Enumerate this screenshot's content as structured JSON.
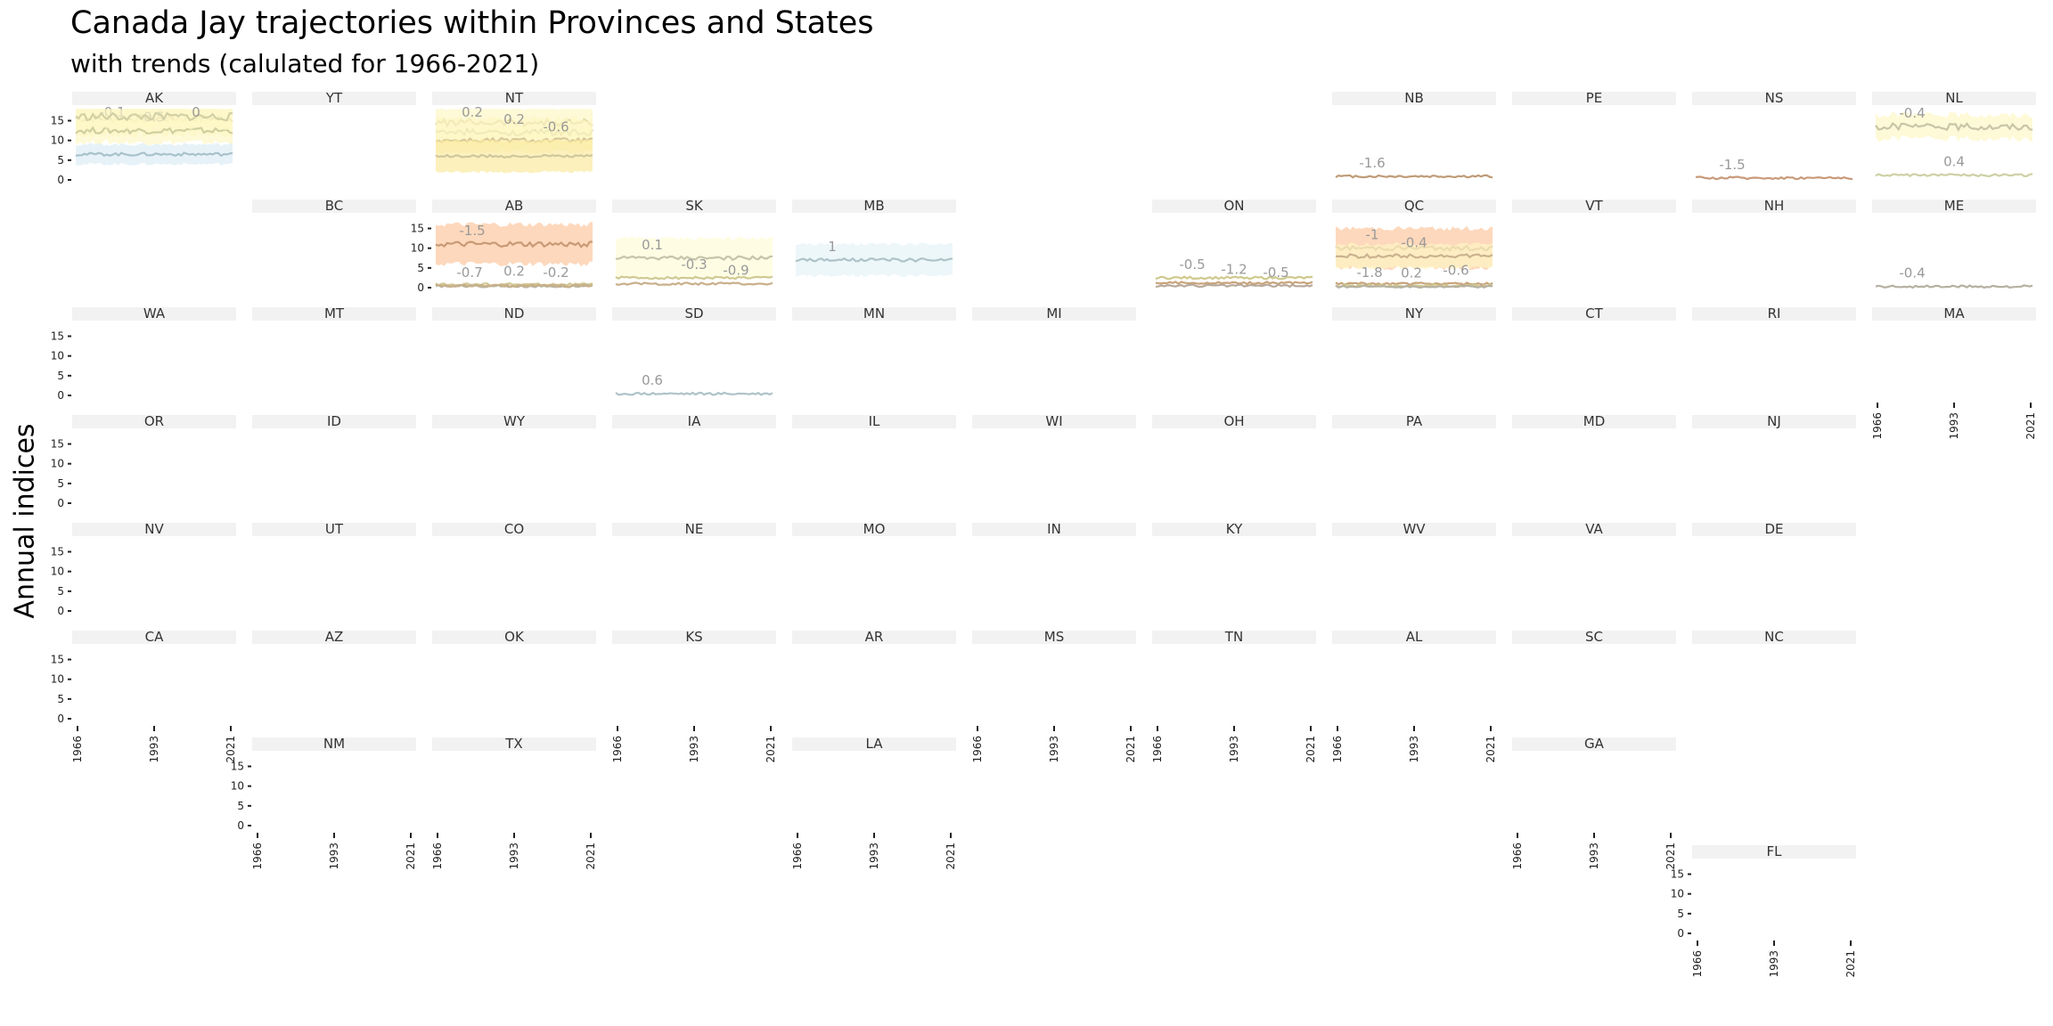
{
  "title": "Canada Jay trajectories within Provinces and States",
  "subtitle": "with trends (calulated for 1966-2021)",
  "chart_data": {
    "type": "line",
    "title": "Canada Jay trajectories within Provinces and States",
    "subtitle": "with trends (calulated for 1966-2021)",
    "ylabel": "Annual indices",
    "xlabel": "",
    "xlim": [
      1966,
      2021
    ],
    "ylim": [
      0,
      18
    ],
    "x_ticks": [
      "1966",
      "1993",
      "2021"
    ],
    "y_ticks": [
      "0",
      "5",
      "10",
      "15"
    ],
    "panels": [
      {
        "label": "AK",
        "series": [
          {
            "level": 15.5,
            "band": 4,
            "color": "#d9d0a0",
            "trend": "-0.1"
          },
          {
            "level": 12.5,
            "band": 3,
            "color": "#cfcf9f",
            "trend": "0.5"
          },
          {
            "level": 16,
            "band": 2.5,
            "color": "#d2d0a5",
            "trend": "0"
          },
          {
            "level": 6.5,
            "band": 2.5,
            "color": "#a9c2cc",
            "fill": "#dcedf5"
          }
        ]
      },
      {
        "label": "YT",
        "series": []
      },
      {
        "label": "NT",
        "series": [
          {
            "level": 14.5,
            "band": 4,
            "color": "#d9cc9a",
            "trend": "0.2"
          },
          {
            "level": 12,
            "band": 3.5,
            "color": "#d6cf9e",
            "trend": "0.2"
          },
          {
            "level": 10,
            "band": 3,
            "color": "#d8c899",
            "trend": "-0.6"
          },
          {
            "level": 6,
            "band": 4,
            "color": "#cfc79d",
            "fill": "#fbe9a0"
          }
        ]
      },
      {
        "label": "NB",
        "series": [
          {
            "level": 0.9,
            "band": 0.2,
            "color": "#bf9b77",
            "trend": "-1.6"
          }
        ]
      },
      {
        "label": "PE",
        "series": []
      },
      {
        "label": "NS",
        "series": [
          {
            "level": 0.5,
            "band": 0.15,
            "color": "#c99a7a",
            "trend": "-1.5"
          }
        ]
      },
      {
        "label": "NL",
        "series": [
          {
            "level": 13.5,
            "band": 3,
            "color": "#c8c5a8",
            "trend": "-0.4"
          },
          {
            "level": 1.2,
            "band": 0.5,
            "color": "#cdd0a4",
            "trend": "0.4"
          }
        ]
      },
      {
        "label": "BC",
        "series": []
      },
      {
        "label": "AB",
        "series": [
          {
            "level": 11,
            "band": 5,
            "color": "#c99a76",
            "fill": "#fcc7a0",
            "trend": "-1.5"
          },
          {
            "level": 0.8,
            "band": 0.4,
            "color": "#d0c792",
            "trend": "0.2"
          },
          {
            "level": 0.4,
            "band": 0.2,
            "color": "#b9b4a0",
            "trend": "-0.2"
          },
          {
            "level": 0.5,
            "band": 0.3,
            "color": "#c9b088",
            "trend": "-0.7"
          }
        ]
      },
      {
        "label": "SK",
        "series": [
          {
            "level": 7.5,
            "band": 5,
            "color": "#c5c5a9",
            "fill": "#fefcd9",
            "trend": "0.1"
          },
          {
            "level": 2.5,
            "band": 1,
            "color": "#cfc992",
            "trend": "-0.3"
          },
          {
            "level": 1,
            "band": 0.5,
            "color": "#c9b08b",
            "trend": "-0.9"
          }
        ]
      },
      {
        "label": "MB",
        "series": [
          {
            "level": 7,
            "band": 4,
            "color": "#aec3c8",
            "fill": "#e6f3f8",
            "trend": "1"
          }
        ]
      },
      {
        "label": "ON",
        "series": [
          {
            "level": 2.5,
            "band": 1,
            "color": "#cfc98e",
            "trend": "-0.5"
          },
          {
            "level": 1.2,
            "band": 0.5,
            "color": "#c8a37a",
            "trend": "-1.2"
          },
          {
            "level": 0.5,
            "band": 0.3,
            "color": "#b7a99a",
            "trend": "-0.5"
          }
        ]
      },
      {
        "label": "QC",
        "series": [
          {
            "level": 10,
            "band": 5,
            "color": "#c39c7a",
            "fill": "#fcc7a0",
            "trend": "-1"
          },
          {
            "level": 8,
            "band": 3,
            "color": "#cbb290",
            "trend": "-0.4"
          },
          {
            "level": 1,
            "band": 0.5,
            "color": "#c8a37a",
            "trend": "-0.6"
          },
          {
            "level": 0.5,
            "band": 0.3,
            "color": "#cfc990",
            "trend": "-1.8"
          },
          {
            "level": 0.3,
            "band": 0.2,
            "color": "#b5b0a0",
            "trend": "0.2"
          }
        ]
      },
      {
        "label": "VT",
        "series": []
      },
      {
        "label": "NH",
        "series": []
      },
      {
        "label": "ME",
        "series": [
          {
            "level": 0.3,
            "band": 0.1,
            "color": "#b5b0a0",
            "trend": "-0.4"
          }
        ]
      },
      {
        "label": "WA",
        "series": []
      },
      {
        "label": "MT",
        "series": []
      },
      {
        "label": "ND",
        "series": []
      },
      {
        "label": "SD",
        "series": [
          {
            "level": 0.4,
            "band": 0.15,
            "color": "#aec3c8",
            "trend": "0.6"
          }
        ]
      },
      {
        "label": "MN",
        "series": []
      },
      {
        "label": "MI",
        "series": []
      },
      {
        "label": "NY",
        "series": []
      },
      {
        "label": "CT",
        "series": []
      },
      {
        "label": "RI",
        "series": []
      },
      {
        "label": "MA",
        "series": []
      },
      {
        "label": "OR",
        "series": []
      },
      {
        "label": "ID",
        "series": []
      },
      {
        "label": "WY",
        "series": []
      },
      {
        "label": "IA",
        "series": []
      },
      {
        "label": "IL",
        "series": []
      },
      {
        "label": "WI",
        "series": []
      },
      {
        "label": "OH",
        "series": []
      },
      {
        "label": "PA",
        "series": []
      },
      {
        "label": "MD",
        "series": []
      },
      {
        "label": "NJ",
        "series": []
      },
      {
        "label": "NV",
        "series": []
      },
      {
        "label": "UT",
        "series": []
      },
      {
        "label": "CO",
        "series": []
      },
      {
        "label": "NE",
        "series": []
      },
      {
        "label": "MO",
        "series": []
      },
      {
        "label": "IN",
        "series": []
      },
      {
        "label": "KY",
        "series": []
      },
      {
        "label": "WV",
        "series": []
      },
      {
        "label": "VA",
        "series": []
      },
      {
        "label": "DE",
        "series": []
      },
      {
        "label": "CA",
        "series": []
      },
      {
        "label": "AZ",
        "series": []
      },
      {
        "label": "OK",
        "series": []
      },
      {
        "label": "KS",
        "series": []
      },
      {
        "label": "AR",
        "series": []
      },
      {
        "label": "MS",
        "series": []
      },
      {
        "label": "TN",
        "series": []
      },
      {
        "label": "AL",
        "series": []
      },
      {
        "label": "SC",
        "series": []
      },
      {
        "label": "NC",
        "series": []
      },
      {
        "label": "NM",
        "series": []
      },
      {
        "label": "TX",
        "series": []
      },
      {
        "label": "LA",
        "series": []
      },
      {
        "label": "GA",
        "series": []
      },
      {
        "label": "FL",
        "series": []
      }
    ]
  }
}
